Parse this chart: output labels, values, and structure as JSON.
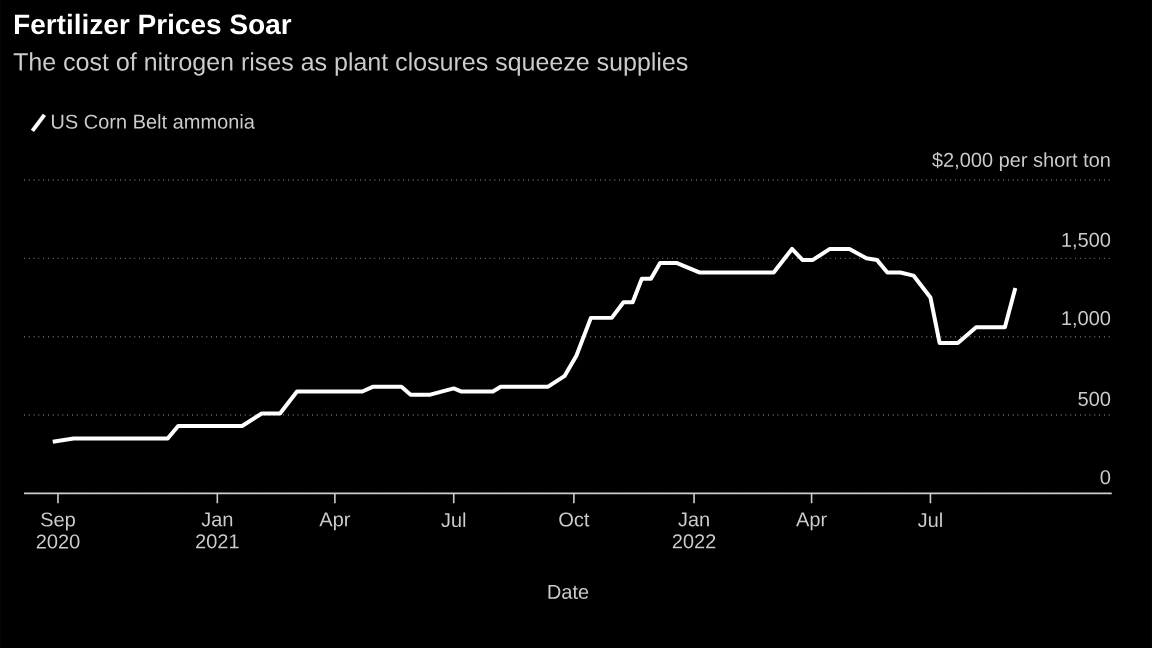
{
  "chart_data": {
    "type": "line",
    "title": "Fertilizer Prices Soar",
    "subtitle": "The cost of nitrogen rises as plant closures squeeze supplies",
    "xlabel": "Date",
    "x": [
      "2020-08-28",
      "2020-09-13",
      "2020-11-24",
      "2020-12-02",
      "2021-01-20",
      "2021-02-04",
      "2021-02-18",
      "2021-03-03",
      "2021-04-22",
      "2021-04-30",
      "2021-05-22",
      "2021-05-29",
      "2021-06-13",
      "2021-07-01",
      "2021-07-07",
      "2021-07-31",
      "2021-08-06",
      "2021-09-11",
      "2021-09-24",
      "2021-10-03",
      "2021-10-14",
      "2021-10-30",
      "2021-11-08",
      "2021-11-15",
      "2021-11-22",
      "2021-11-29",
      "2021-12-06",
      "2021-12-19",
      "2022-01-05",
      "2022-03-03",
      "2022-03-17",
      "2022-03-25",
      "2022-04-02",
      "2022-04-15",
      "2022-04-30",
      "2022-05-13",
      "2022-05-21",
      "2022-05-29",
      "2022-06-08",
      "2022-06-18",
      "2022-07-01",
      "2022-07-08",
      "2022-07-22",
      "2022-08-05",
      "2022-08-27",
      "2022-09-04"
    ],
    "series": [
      {
        "name": "US Corn Belt ammonia",
        "color": "#ffffff",
        "values": [
          330,
          350,
          350,
          430,
          430,
          510,
          510,
          650,
          650,
          680,
          680,
          630,
          630,
          670,
          650,
          650,
          680,
          680,
          750,
          880,
          1120,
          1120,
          1220,
          1220,
          1370,
          1370,
          1470,
          1470,
          1410,
          1410,
          1560,
          1490,
          1490,
          1560,
          1560,
          1500,
          1490,
          1410,
          1410,
          1390,
          1250,
          960,
          960,
          1060,
          1060,
          1310
        ]
      }
    ],
    "xlim": [
      "2020-08-06",
      "2022-11-17"
    ],
    "xticks": [
      {
        "value": "2020-09-01",
        "label": "Sep 2020"
      },
      {
        "value": "2021-01-01",
        "label": "Jan 2021"
      },
      {
        "value": "2021-04-01",
        "label": "Apr"
      },
      {
        "value": "2021-07-01",
        "label": "Jul"
      },
      {
        "value": "2021-10-01",
        "label": "Oct"
      },
      {
        "value": "2022-01-01",
        "label": "Jan 2022"
      },
      {
        "value": "2022-04-01",
        "label": "Apr"
      },
      {
        "value": "2022-07-01",
        "label": "Jul"
      }
    ],
    "ylim": [
      0,
      2000
    ],
    "yticks": [
      0,
      500,
      {
        "value": 1000,
        "label": "1,000"
      },
      {
        "value": 1500,
        "label": "1,500"
      },
      {
        "value": 2000,
        "label": "$2,000 per short ton"
      }
    ],
    "grid": "y",
    "legend": "top left",
    "line_style": "solid",
    "marker": "none"
  }
}
